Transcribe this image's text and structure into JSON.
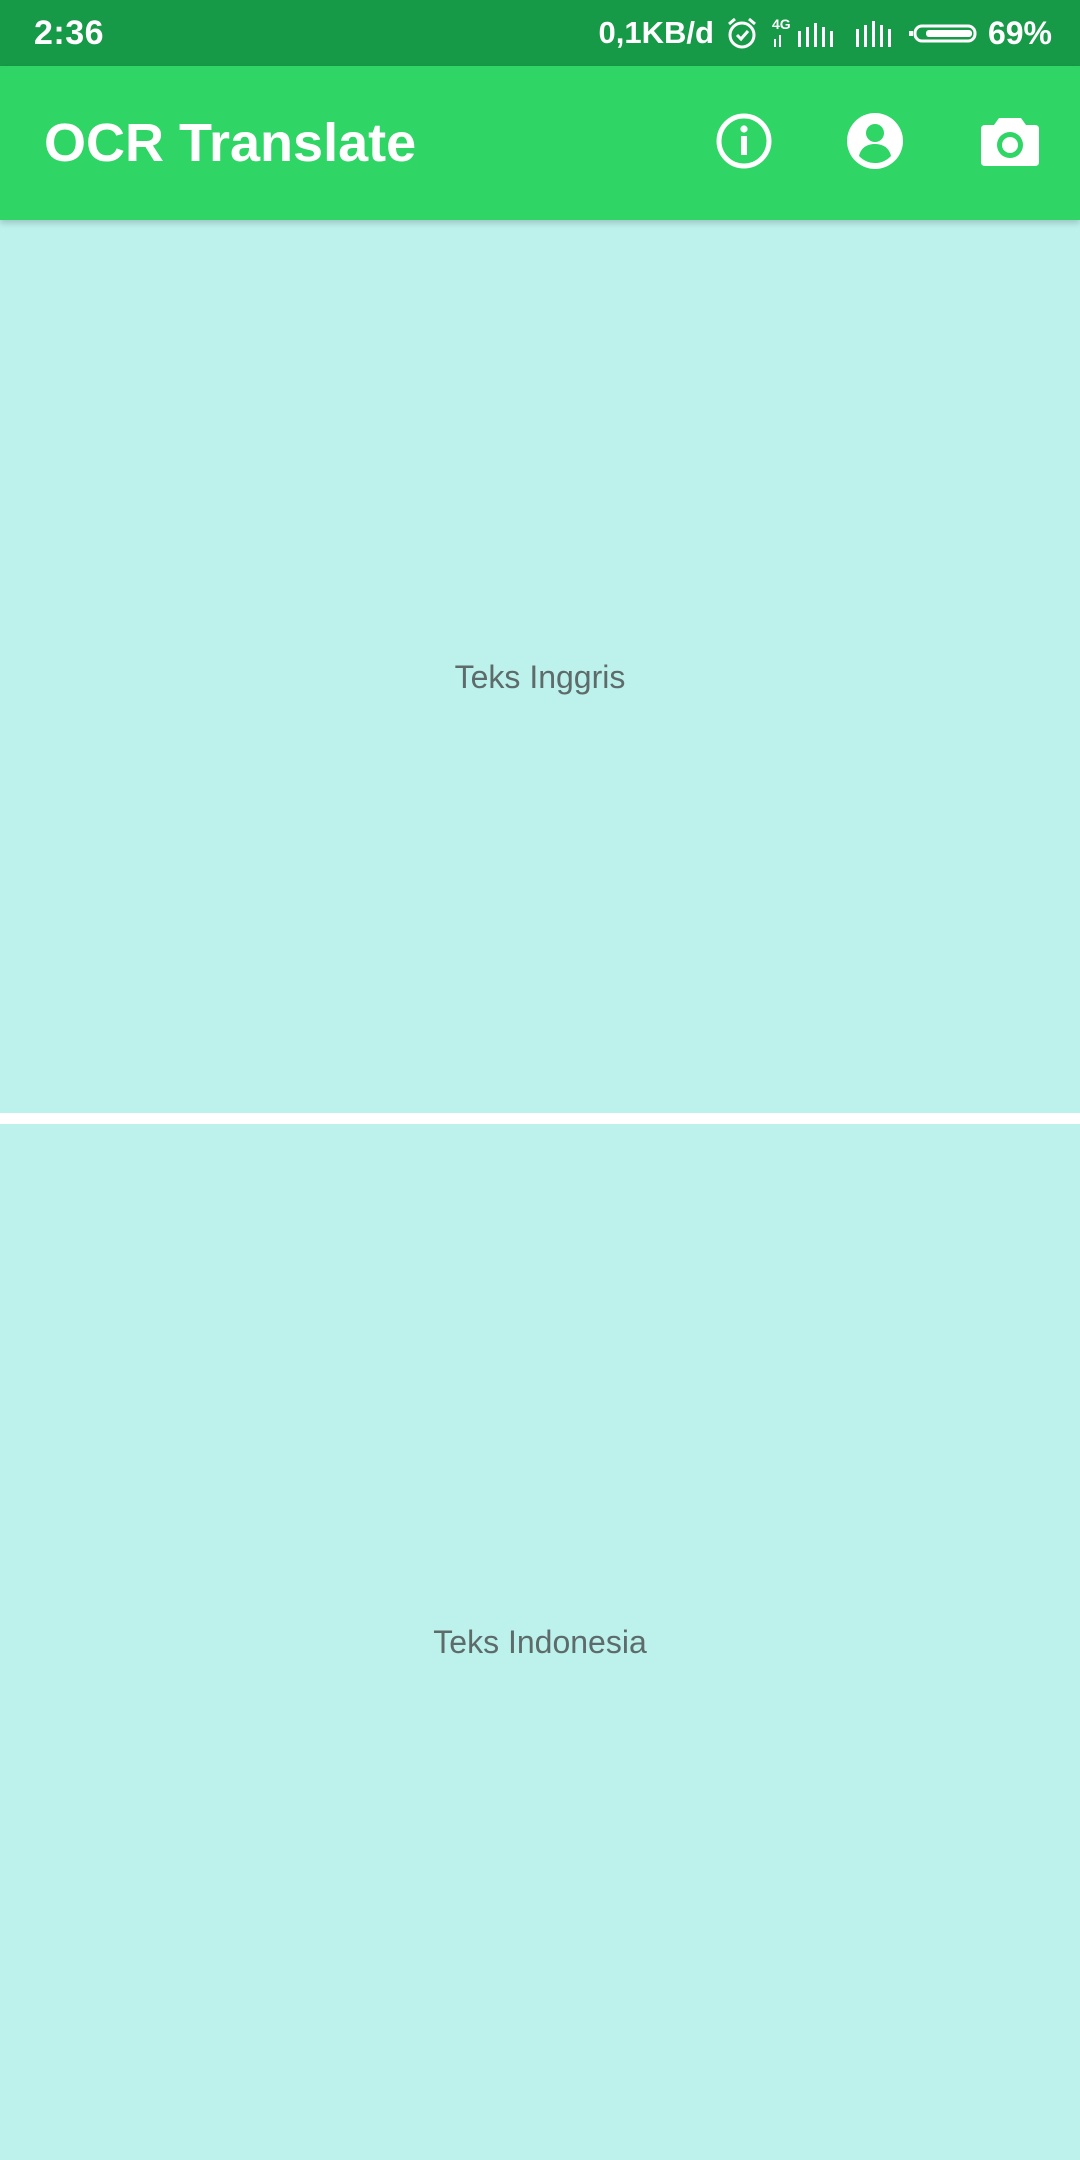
{
  "status_bar": {
    "time": "2:36",
    "net_speed": "0,1KB/d",
    "network_type": "4G",
    "battery_percent": "69%",
    "icons": [
      "alarm-icon",
      "signal-4g-icon",
      "signal-icon",
      "battery-icon"
    ]
  },
  "app_bar": {
    "title": "OCR Translate",
    "actions": [
      {
        "name": "info",
        "icon": "info-icon"
      },
      {
        "name": "account",
        "icon": "account-circle-icon"
      },
      {
        "name": "camera",
        "icon": "camera-icon"
      }
    ],
    "color": "#2fd565"
  },
  "source_panel": {
    "placeholder": "Teks Inggris"
  },
  "target_panel": {
    "placeholder": "Teks Indonesia"
  },
  "colors": {
    "status_bar": "#169a48",
    "panel_background": "#bdf1ec",
    "placeholder_text": "#5d6b6a"
  }
}
